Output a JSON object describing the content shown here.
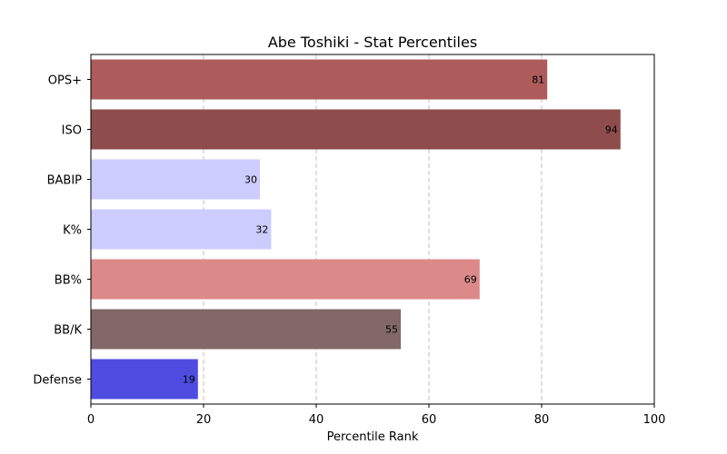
{
  "chart_data": {
    "type": "bar",
    "orientation": "horizontal",
    "title": "Abe Toshiki - Stat Percentiles",
    "xlabel": "Percentile Rank",
    "ylabel": "",
    "xlim": [
      0,
      100
    ],
    "xticks": [
      0,
      20,
      40,
      60,
      80,
      100
    ],
    "grid": "x-dashed",
    "categories": [
      "OPS+",
      "ISO",
      "BABIP",
      "K%",
      "BB%",
      "BB/K",
      "Defense"
    ],
    "values": [
      81,
      94,
      30,
      32,
      69,
      55,
      19
    ],
    "colors": [
      "#ad5b5b",
      "#8f4c4c",
      "#ccccff",
      "#ccccff",
      "#dc8989",
      "#826868",
      "#4e4ce0"
    ]
  }
}
